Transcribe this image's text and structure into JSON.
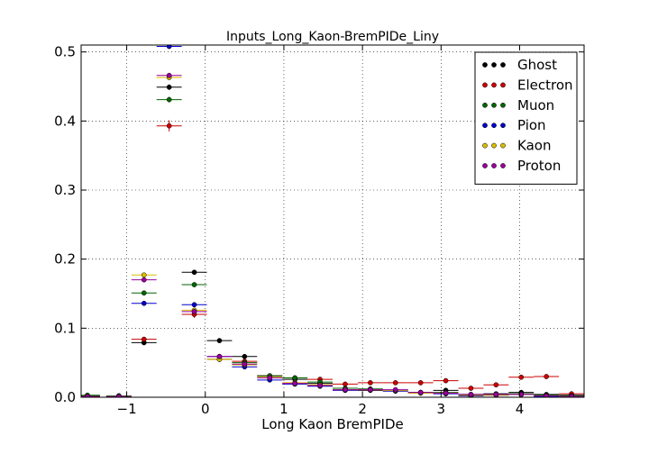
{
  "chart_data": {
    "type": "scatter",
    "title": "Inputs_Long_Kaon-BremPIDe_Liny",
    "xlabel": "Long Kaon BremPIDe",
    "ylabel": "",
    "xlim": [
      -1.58,
      4.82
    ],
    "ylim": [
      0.0,
      0.51
    ],
    "xticks": [
      -1,
      0,
      1,
      2,
      3,
      4
    ],
    "yticks": [
      0.0,
      0.1,
      0.2,
      0.3,
      0.4,
      0.5
    ],
    "xtick_labels": [
      "−1",
      "0",
      "1",
      "2",
      "3",
      "4"
    ],
    "ytick_labels": [
      "0.0",
      "0.1",
      "0.2",
      "0.3",
      "0.4",
      "0.5"
    ],
    "grid": true,
    "legend_position": "top-right",
    "bin_half_width": 0.16,
    "series": [
      {
        "name": "Ghost",
        "color": "#000000",
        "x": [
          -1.5,
          -1.1,
          -0.78,
          -0.46,
          -0.14,
          0.18,
          0.5,
          0.82,
          1.14,
          1.46,
          1.78,
          2.1,
          2.42,
          2.74,
          3.06,
          3.38,
          3.7,
          4.02,
          4.34,
          4.66
        ],
        "y": [
          0.002,
          0.002,
          0.079,
          0.449,
          0.181,
          0.082,
          0.059,
          0.031,
          0.026,
          0.02,
          0.011,
          0.01,
          0.009,
          0.007,
          0.01,
          0.004,
          0.005,
          0.007,
          0.004,
          0.003
        ],
        "yerr": [
          0.0005,
          0.0005,
          0.002,
          0.004,
          0.003,
          0.002,
          0.002,
          0.001,
          0.001,
          0.001,
          0.001,
          0.001,
          0.001,
          0.001,
          0.001,
          0.001,
          0.001,
          0.001,
          0.001,
          0.001
        ]
      },
      {
        "name": "Electron",
        "color": "#cc0000",
        "x": [
          -1.5,
          -1.1,
          -0.78,
          -0.46,
          -0.14,
          0.18,
          0.5,
          0.82,
          1.14,
          1.46,
          1.78,
          2.1,
          2.42,
          2.74,
          3.06,
          3.38,
          3.7,
          4.02,
          4.34,
          4.66
        ],
        "y": [
          0.001,
          0.001,
          0.084,
          0.393,
          0.12,
          0.055,
          0.052,
          0.031,
          0.028,
          0.026,
          0.019,
          0.021,
          0.021,
          0.021,
          0.024,
          0.013,
          0.018,
          0.029,
          0.03,
          0.005
        ],
        "yerr": [
          0.0005,
          0.0005,
          0.003,
          0.008,
          0.005,
          0.003,
          0.003,
          0.002,
          0.002,
          0.002,
          0.002,
          0.002,
          0.002,
          0.002,
          0.002,
          0.002,
          0.002,
          0.002,
          0.002,
          0.001
        ]
      },
      {
        "name": "Muon",
        "color": "#006600",
        "x": [
          -1.5,
          -1.1,
          -0.78,
          -0.46,
          -0.14,
          0.18,
          0.5,
          0.82,
          1.14,
          1.46,
          1.78,
          2.1,
          2.42,
          2.74,
          3.06,
          3.38,
          3.7,
          4.02,
          4.34,
          4.66
        ],
        "y": [
          0.003,
          0.002,
          0.151,
          0.431,
          0.163,
          0.055,
          0.05,
          0.031,
          0.028,
          0.022,
          0.013,
          0.012,
          0.01,
          0.007,
          0.007,
          0.004,
          0.004,
          0.005,
          0.003,
          0.002
        ],
        "yerr": [
          0.0005,
          0.0005,
          0.003,
          0.004,
          0.003,
          0.002,
          0.002,
          0.001,
          0.001,
          0.001,
          0.001,
          0.001,
          0.001,
          0.001,
          0.001,
          0.001,
          0.001,
          0.001,
          0.001,
          0.001
        ]
      },
      {
        "name": "Pion",
        "color": "#0000cc",
        "x": [
          -1.5,
          -1.1,
          -0.78,
          -0.46,
          -0.14,
          0.18,
          0.5,
          0.82,
          1.14,
          1.46,
          1.78,
          2.1,
          2.42,
          2.74,
          3.06,
          3.38,
          3.7,
          4.02,
          4.34,
          4.66
        ],
        "y": [
          0.001,
          0.001,
          0.136,
          0.508,
          0.134,
          0.059,
          0.044,
          0.025,
          0.019,
          0.016,
          0.01,
          0.011,
          0.009,
          0.006,
          0.005,
          0.002,
          0.003,
          0.004,
          0.001,
          0.001
        ],
        "yerr": [
          0.0005,
          0.0005,
          0.002,
          0.003,
          0.002,
          0.001,
          0.001,
          0.001,
          0.001,
          0.001,
          0.001,
          0.001,
          0.001,
          0.001,
          0.001,
          0.001,
          0.001,
          0.001,
          0.001,
          0.001
        ]
      },
      {
        "name": "Kaon",
        "color": "#ddbb00",
        "x": [
          -1.5,
          -1.1,
          -0.78,
          -0.46,
          -0.14,
          0.18,
          0.5,
          0.82,
          1.14,
          1.46,
          1.78,
          2.1,
          2.42,
          2.74,
          3.06,
          3.38,
          3.7,
          4.02,
          4.34,
          4.66
        ],
        "y": [
          0.001,
          0.001,
          0.177,
          0.463,
          0.126,
          0.055,
          0.047,
          0.029,
          0.021,
          0.018,
          0.011,
          0.011,
          0.01,
          0.006,
          0.006,
          0.003,
          0.003,
          0.004,
          0.002,
          0.001
        ],
        "yerr": [
          0.0005,
          0.0005,
          0.002,
          0.003,
          0.002,
          0.001,
          0.001,
          0.001,
          0.001,
          0.001,
          0.001,
          0.001,
          0.001,
          0.001,
          0.001,
          0.001,
          0.001,
          0.001,
          0.001,
          0.001
        ]
      },
      {
        "name": "Proton",
        "color": "#990099",
        "x": [
          -1.5,
          -1.1,
          -0.78,
          -0.46,
          -0.14,
          0.18,
          0.5,
          0.82,
          1.14,
          1.46,
          1.78,
          2.1,
          2.42,
          2.74,
          3.06,
          3.38,
          3.7,
          4.02,
          4.34,
          4.66
        ],
        "y": [
          0.001,
          0.001,
          0.17,
          0.466,
          0.124,
          0.059,
          0.048,
          0.028,
          0.02,
          0.017,
          0.011,
          0.011,
          0.011,
          0.007,
          0.006,
          0.004,
          0.004,
          0.004,
          0.002,
          0.001
        ],
        "yerr": [
          0.0005,
          0.0005,
          0.002,
          0.003,
          0.002,
          0.001,
          0.001,
          0.001,
          0.001,
          0.001,
          0.001,
          0.001,
          0.001,
          0.001,
          0.001,
          0.001,
          0.001,
          0.001,
          0.001,
          0.001
        ]
      }
    ]
  }
}
